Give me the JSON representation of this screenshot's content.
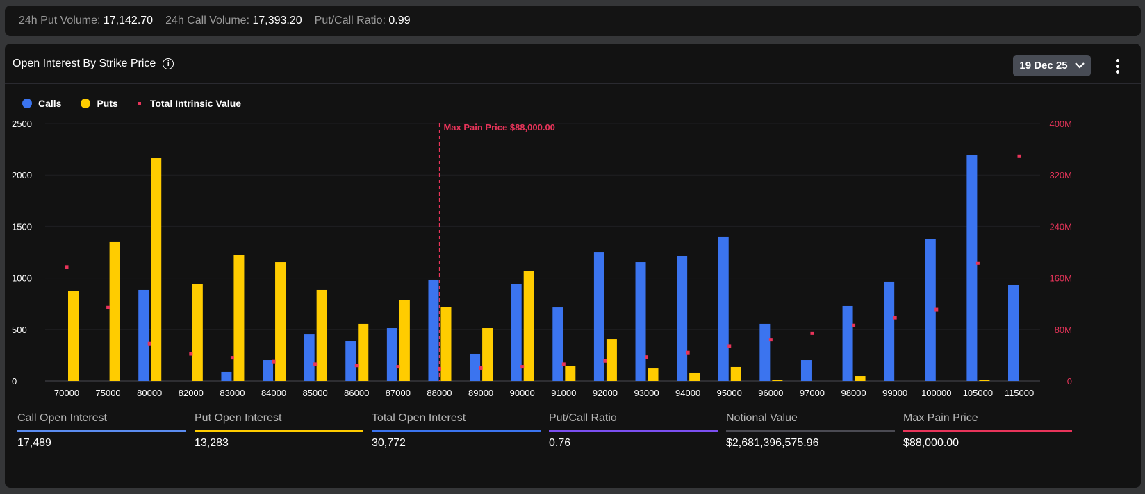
{
  "topbar": {
    "put_volume_label": "24h Put Volume:",
    "put_volume": "17,142.70",
    "call_volume_label": "24h Call Volume:",
    "call_volume": "17,393.20",
    "ratio_label": "Put/Call Ratio:",
    "ratio": "0.99"
  },
  "panel": {
    "title": "Open Interest By Strike Price",
    "info_icon": "info-icon",
    "date": "19 Dec 25",
    "more_icon": "more-vertical-icon"
  },
  "colors": {
    "calls": "#3b74ef",
    "puts": "#ffcc00",
    "intrinsic": "#e8345a"
  },
  "chart_data": {
    "type": "bar",
    "legend": [
      "Calls",
      "Puts",
      "Total Intrinsic Value"
    ],
    "legend_position": "top-left",
    "categories": [
      "70000",
      "75000",
      "80000",
      "82000",
      "83000",
      "84000",
      "85000",
      "86000",
      "87000",
      "88000",
      "89000",
      "90000",
      "91000",
      "92000",
      "93000",
      "94000",
      "95000",
      "96000",
      "97000",
      "98000",
      "99000",
      "100000",
      "105000",
      "115000"
    ],
    "series": [
      {
        "name": "Calls",
        "axis": "left",
        "values": [
          0,
          0,
          883,
          0,
          88,
          202,
          451,
          384,
          512,
          984,
          263,
          937,
          714,
          1253,
          1152,
          1213,
          1402,
          553,
          202,
          728,
          964,
          1381,
          2190,
          930
        ]
      },
      {
        "name": "Puts",
        "axis": "left",
        "values": [
          876,
          1348,
          2163,
          937,
          1226,
          1152,
          883,
          553,
          782,
          721,
          512,
          1065,
          148,
          404,
          121,
          81,
          135,
          13,
          0,
          47,
          0,
          0,
          13,
          0
        ]
      },
      {
        "name": "Total Intrinsic Value",
        "axis": "right",
        "type": "scatter",
        "values": [
          177000000,
          114000000,
          58000000,
          42000000,
          36000000,
          30000000,
          26000000,
          24000000,
          22000000,
          19000000,
          20000000,
          22000000,
          26000000,
          31000000,
          37000000,
          44000000,
          54000000,
          64000000,
          74000000,
          86000000,
          98000000,
          111000000,
          183000000,
          349000000
        ]
      }
    ],
    "y_left": {
      "range": [
        0,
        2500
      ],
      "ticks": [
        "0",
        "500",
        "1000",
        "1500",
        "2000",
        "2500"
      ]
    },
    "y_right": {
      "range": [
        0,
        400000000
      ],
      "ticks": [
        "0",
        "80M",
        "160M",
        "240M",
        "320M",
        "400M"
      ]
    },
    "annotation": {
      "label": "Max Pain Price $88,000.00",
      "category": "88000"
    },
    "grid": true
  },
  "stats": [
    {
      "label": "Call Open Interest",
      "value": "17,489",
      "color": "#5b8cf0"
    },
    {
      "label": "Put Open Interest",
      "value": "13,283",
      "color": "#ffcc00"
    },
    {
      "label": "Total Open Interest",
      "value": "30,772",
      "color": "#3b74ef"
    },
    {
      "label": "Put/Call Ratio",
      "value": "0.76",
      "color": "#7b4ff0"
    },
    {
      "label": "Notional Value",
      "value": "$2,681,396,575.96",
      "color": "#4a4a52"
    },
    {
      "label": "Max Pain Price",
      "value": "$88,000.00",
      "color": "#e8345a"
    }
  ]
}
